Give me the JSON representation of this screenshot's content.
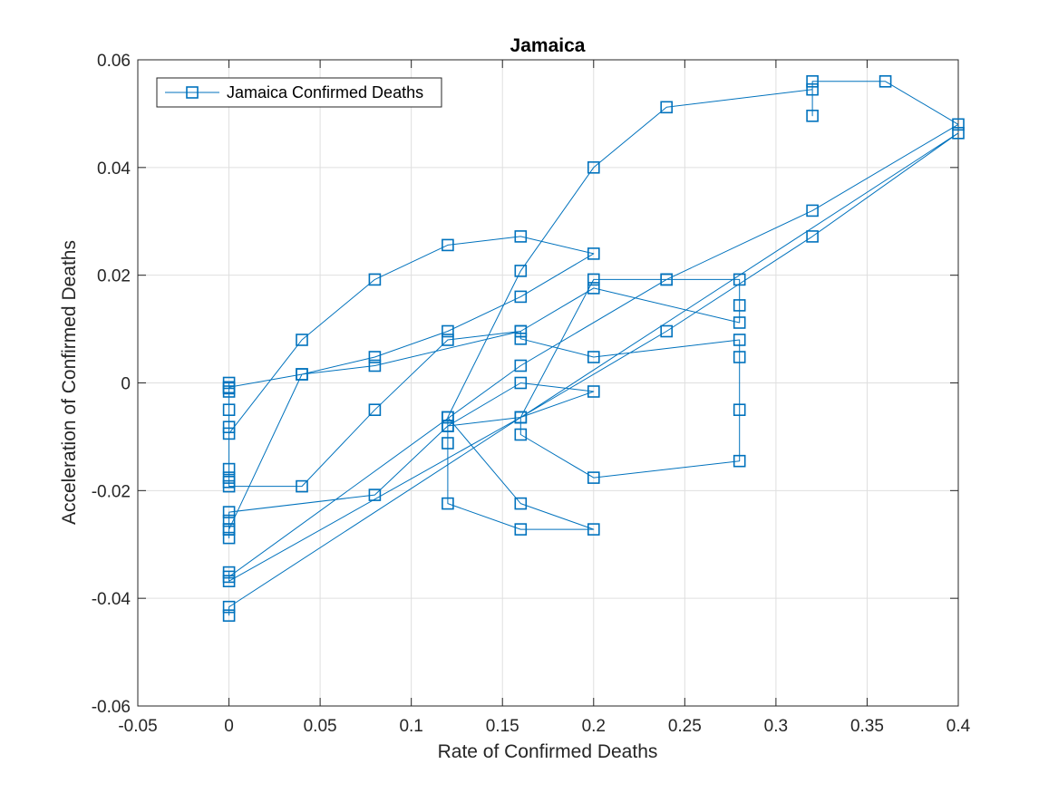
{
  "chart_data": {
    "type": "line",
    "title": "Jamaica",
    "xlabel": "Rate of Confirmed Deaths",
    "ylabel": "Acceleration of Confirmed Deaths",
    "xlim": [
      -0.05,
      0.4
    ],
    "ylim": [
      -0.06,
      0.06
    ],
    "xticks": [
      -0.05,
      0,
      0.05,
      0.1,
      0.15,
      0.2,
      0.25,
      0.3,
      0.35,
      0.4
    ],
    "xtick_labels": [
      "-0.05",
      "0",
      "0.05",
      "0.1",
      "0.15",
      "0.2",
      "0.25",
      "0.3",
      "0.35",
      "0.4"
    ],
    "yticks": [
      -0.06,
      -0.04,
      -0.02,
      0,
      0.02,
      0.04,
      0.06
    ],
    "ytick_labels": [
      "-0.06",
      "-0.04",
      "-0.02",
      "0",
      "0.02",
      "0.04",
      "0.06"
    ],
    "grid": true,
    "legend_position": "top-left",
    "series": [
      {
        "name": "Jamaica Confirmed Deaths",
        "color": "#0072BD",
        "marker": "square",
        "points": [
          [
            0,
            0
          ],
          [
            0,
            -0.001
          ],
          [
            0,
            -0.0016
          ],
          [
            0,
            -0.005
          ],
          [
            0,
            -0.0082
          ],
          [
            0,
            -0.0094
          ],
          [
            0.04,
            0.008
          ],
          [
            0.08,
            0.0192
          ],
          [
            0.12,
            0.0256
          ],
          [
            0.16,
            0.0272
          ],
          [
            0.2,
            0.024
          ],
          [
            0.16,
            0.016
          ],
          [
            0.12,
            0.0096
          ],
          [
            0.08,
            0.0048
          ],
          [
            0.04,
            0.0016
          ],
          [
            0,
            -0.0008
          ],
          [
            0,
            -0.016
          ],
          [
            0,
            -0.0176
          ],
          [
            0,
            -0.0184
          ],
          [
            0,
            -0.0192
          ],
          [
            0.04,
            -0.0192
          ],
          [
            0.08,
            -0.005
          ],
          [
            0.12,
            0.008
          ],
          [
            0.16,
            0.0096
          ],
          [
            0.16,
            0.0082
          ],
          [
            0.2,
            0.0048
          ],
          [
            0.28,
            0.008
          ],
          [
            0.28,
            0.0048
          ],
          [
            0.28,
            -0.005
          ],
          [
            0.28,
            -0.0145
          ],
          [
            0.2,
            -0.0176
          ],
          [
            0.16,
            -0.0096
          ],
          [
            0.16,
            -0.0064
          ],
          [
            0.2,
            0.0192
          ],
          [
            0.24,
            0.0192
          ],
          [
            0.28,
            0.0192
          ],
          [
            0.28,
            0.0144
          ],
          [
            0.28,
            0.0112
          ],
          [
            0.2,
            0.0176
          ],
          [
            0.16,
            0.0096
          ],
          [
            0.08,
            0.0032
          ],
          [
            0.04,
            0.0016
          ],
          [
            0,
            -0.0272
          ],
          [
            0,
            -0.0288
          ],
          [
            0,
            -0.0272
          ],
          [
            0,
            -0.0256
          ],
          [
            0,
            -0.024
          ],
          [
            0.08,
            -0.0208
          ],
          [
            0.12,
            -0.008
          ],
          [
            0.16,
            0
          ],
          [
            0.2,
            -0.0016
          ],
          [
            0.16,
            -0.0064
          ],
          [
            0.12,
            -0.008
          ],
          [
            0.12,
            -0.0064
          ],
          [
            0.12,
            -0.0112
          ],
          [
            0.12,
            -0.0224
          ],
          [
            0.16,
            -0.0272
          ],
          [
            0.2,
            -0.0272
          ],
          [
            0.16,
            -0.0224
          ],
          [
            0.12,
            -0.0064
          ],
          [
            0.16,
            0.0208
          ],
          [
            0.2,
            0.04
          ],
          [
            0.24,
            0.0512
          ],
          [
            0.32,
            0.0545
          ],
          [
            0.32,
            0.0496
          ],
          [
            0.32,
            0.056
          ],
          [
            0.36,
            0.056
          ],
          [
            0.4,
            0.048
          ],
          [
            0.32,
            0.032
          ],
          [
            0.24,
            0.0192
          ],
          [
            0.16,
            0.0032
          ],
          [
            0,
            -0.036
          ],
          [
            0,
            -0.0352
          ],
          [
            0,
            -0.0368
          ],
          [
            0.16,
            -0.0064
          ],
          [
            0.24,
            0.0096
          ],
          [
            0.32,
            0.0272
          ],
          [
            0.4,
            0.0464
          ],
          [
            0,
            -0.0416
          ],
          [
            0,
            -0.0432
          ]
        ]
      }
    ]
  }
}
